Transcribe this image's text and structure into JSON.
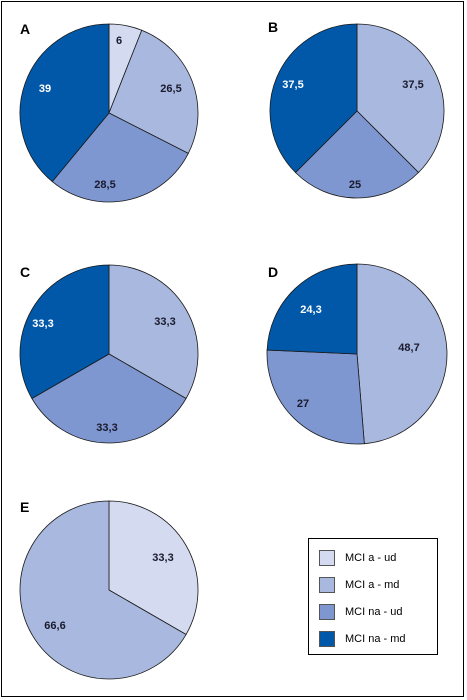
{
  "colors": {
    "MCI a - ud": "#d4daf0",
    "MCI a - md": "#a9b8de",
    "MCI na - ud": "#7f97d0",
    "MCI na - md": "#0158a8"
  },
  "chart_data": [
    {
      "type": "pie",
      "panel": "A",
      "slices": [
        {
          "category": "MCI a - ud",
          "value": 6,
          "label": "6"
        },
        {
          "category": "MCI a - md",
          "value": 26.5,
          "label": "26,5"
        },
        {
          "category": "MCI na - ud",
          "value": 28.5,
          "label": "28,5"
        },
        {
          "category": "MCI na - md",
          "value": 39,
          "label": "39"
        }
      ]
    },
    {
      "type": "pie",
      "panel": "B",
      "slices": [
        {
          "category": "MCI a - md",
          "value": 37.5,
          "label": "37,5"
        },
        {
          "category": "MCI na - ud",
          "value": 25,
          "label": "25"
        },
        {
          "category": "MCI na - md",
          "value": 37.5,
          "label": "37,5"
        }
      ]
    },
    {
      "type": "pie",
      "panel": "C",
      "slices": [
        {
          "category": "MCI a - md",
          "value": 33.3,
          "label": "33,3"
        },
        {
          "category": "MCI na - ud",
          "value": 33.3,
          "label": "33,3"
        },
        {
          "category": "MCI na - md",
          "value": 33.3,
          "label": "33,3"
        }
      ]
    },
    {
      "type": "pie",
      "panel": "D",
      "slices": [
        {
          "category": "MCI a - md",
          "value": 48.7,
          "label": "48,7"
        },
        {
          "category": "MCI na - ud",
          "value": 27,
          "label": "27"
        },
        {
          "category": "MCI na - md",
          "value": 24.3,
          "label": "24,3"
        }
      ]
    },
    {
      "type": "pie",
      "panel": "E",
      "slices": [
        {
          "category": "MCI a - ud",
          "value": 33.3,
          "label": "33,3"
        },
        {
          "category": "MCI a - md",
          "value": 66.6,
          "label": "66,6"
        }
      ]
    }
  ],
  "legend": {
    "placement": "bottom-right",
    "items": [
      "MCI a - ud",
      "MCI a - md",
      "MCI na - ud",
      "MCI na - md"
    ]
  }
}
